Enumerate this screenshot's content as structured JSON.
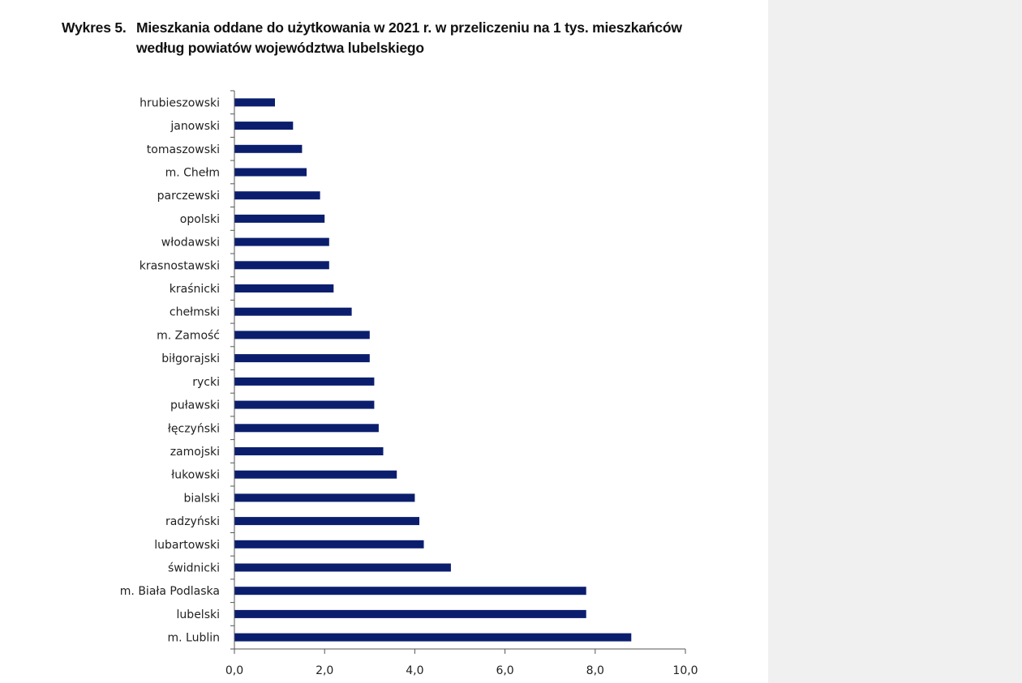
{
  "chart_data": {
    "type": "bar",
    "orientation": "horizontal",
    "label": "Wykres 5.",
    "title_line1": "Mieszkania oddane do użytkowania w 2021 r. w przeliczeniu na 1 tys. mieszkańców",
    "title_line2": "według powiatów województwa lubelskiego",
    "xlabel": "",
    "ylabel": "",
    "xlim": [
      0,
      10
    ],
    "xticks": [
      "0,0",
      "2,0",
      "4,0",
      "6,0",
      "8,0",
      "10,0"
    ],
    "xtick_values": [
      0,
      2,
      4,
      6,
      8,
      10
    ],
    "grid": false,
    "bar_color": "#0b1e6e",
    "categories": [
      "hrubieszowski",
      "janowski",
      "tomaszowski",
      "m. Chełm",
      "parczewski",
      "opolski",
      "włodawski",
      "krasnostawski",
      "kraśnicki",
      "chełmski",
      "m. Zamość",
      "biłgorajski",
      "rycki",
      "puławski",
      "łęczyński",
      "zamojski",
      "łukowski",
      "bialski",
      "radzyński",
      "lubartowski",
      "świdnicki",
      "m. Biała Podlaska",
      "lubelski",
      "m. Lublin"
    ],
    "values": [
      0.9,
      1.3,
      1.5,
      1.6,
      1.9,
      2.0,
      2.1,
      2.1,
      2.2,
      2.6,
      3.0,
      3.0,
      3.1,
      3.1,
      3.2,
      3.3,
      3.6,
      4.0,
      4.1,
      4.2,
      4.8,
      7.8,
      7.8,
      8.8
    ]
  }
}
